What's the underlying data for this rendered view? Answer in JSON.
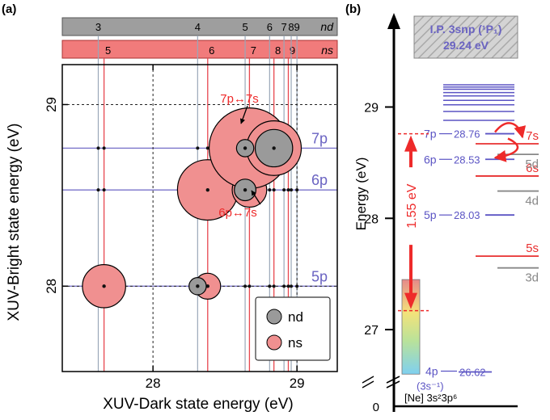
{
  "chart_data": [
    {
      "panel_label": "(a)",
      "type": "scatter",
      "xlabel": "XUV-Dark state energy (eV)",
      "ylabel": "XUV-Bright state energy (eV)",
      "xlim": [
        27.37,
        29.28
      ],
      "ylim": [
        27.53,
        29.22
      ],
      "x_ticks": [
        28,
        29
      ],
      "y_ticks": [
        28,
        29
      ],
      "grid": "dashed lines at 28 and 29",
      "legend": {
        "placement": "bottom-right",
        "entries": [
          {
            "label": "nd",
            "color": "#9a9a9a"
          },
          {
            "label": "ns",
            "color": "#f09090"
          }
        ]
      },
      "top_bar_nd": {
        "label": "nd",
        "color": "#9e9e9e",
        "levels": [
          {
            "n": "3",
            "x": 27.62
          },
          {
            "n": "4",
            "x": 28.31
          },
          {
            "n": "5",
            "x": 28.64
          },
          {
            "n": "6",
            "x": 28.81
          },
          {
            "n": "7",
            "x": 28.91
          },
          {
            "n": "8",
            "x": 28.96
          },
          {
            "n": "9",
            "x": 29.0
          }
        ]
      },
      "top_bar_ns": {
        "label": "ns",
        "color": "#f17b7b",
        "levels": [
          {
            "n": "5",
            "x": 27.66
          },
          {
            "n": "6",
            "x": 28.38
          },
          {
            "n": "7",
            "x": 28.67
          },
          {
            "n": "8",
            "x": 28.84
          },
          {
            "n": "9",
            "x": 28.94
          }
        ]
      },
      "bright_levels": [
        {
          "label": "7p",
          "y": 28.76
        },
        {
          "label": "6p",
          "y": 28.53
        },
        {
          "label": "5p",
          "y": 28.0
        }
      ],
      "line_colors": {
        "nd": "#9aa7b8",
        "ns": "#e8474f",
        "np": "#7a73c9"
      },
      "annotations": [
        {
          "text": "7p↔7s"
        },
        {
          "text": "6p↔7s"
        }
      ],
      "series": [
        {
          "name": "nd",
          "points": [
            {
              "x": 28.31,
              "y": 28.0,
              "size": 0.12
            },
            {
              "x": 28.64,
              "y": 28.53,
              "size": 0.15
            },
            {
              "x": 28.64,
              "y": 28.76,
              "size": 0.12
            },
            {
              "x": 28.84,
              "y": 28.76,
              "size": 0.26
            }
          ]
        },
        {
          "name": "ns",
          "points": [
            {
              "x": 27.66,
              "y": 28.0,
              "size": 0.3
            },
            {
              "x": 28.38,
              "y": 28.0,
              "size": 0.18
            },
            {
              "x": 28.38,
              "y": 28.53,
              "size": 0.42
            },
            {
              "x": 28.67,
              "y": 28.53,
              "size": 0.24
            },
            {
              "x": 28.67,
              "y": 28.76,
              "size": 0.56
            },
            {
              "x": 28.84,
              "y": 28.76,
              "size": 0.38
            }
          ]
        }
      ]
    },
    {
      "panel_label": "(b)",
      "type": "level-diagram",
      "ylabel": "Energy (eV)",
      "y_ticks": [
        27,
        28,
        29
      ],
      "y_bottom_tick": "0",
      "ionization": {
        "line1": "I.P. 3snp (¹P₁)",
        "line2": "29.24 eV",
        "value": 29.24
      },
      "ground_state": "[Ne] 3s²3p⁶",
      "np_levels": [
        {
          "label": "7p",
          "value_text": "28.76",
          "value": 28.76
        },
        {
          "label": "6p",
          "value_text": "28.53",
          "value": 28.53
        },
        {
          "label": "5p",
          "value_text": "28.03",
          "value": 28.03
        },
        {
          "label": "4p",
          "value_text": "26.62",
          "value": 26.62,
          "sublabel": "(3s⁻¹)"
        }
      ],
      "rydberg_np_values": [
        28.88,
        28.96,
        29.02,
        29.06,
        29.1,
        29.13,
        29.16,
        29.18,
        29.2
      ],
      "ns_levels": [
        {
          "label": "7s",
          "value": 28.67
        },
        {
          "label": "6s",
          "value": 28.38
        },
        {
          "label": "5s",
          "value": 27.66
        }
      ],
      "nd_levels": [
        {
          "label": "5d",
          "value": 28.64
        },
        {
          "label": "4d",
          "value": 28.31
        },
        {
          "label": "3d",
          "value": 27.62
        }
      ],
      "pulse_text": "1.55 eV",
      "pulse_top": 28.76,
      "pulse_bottom": 27.17,
      "xuv_band": [
        26.6,
        27.45
      ]
    }
  ]
}
